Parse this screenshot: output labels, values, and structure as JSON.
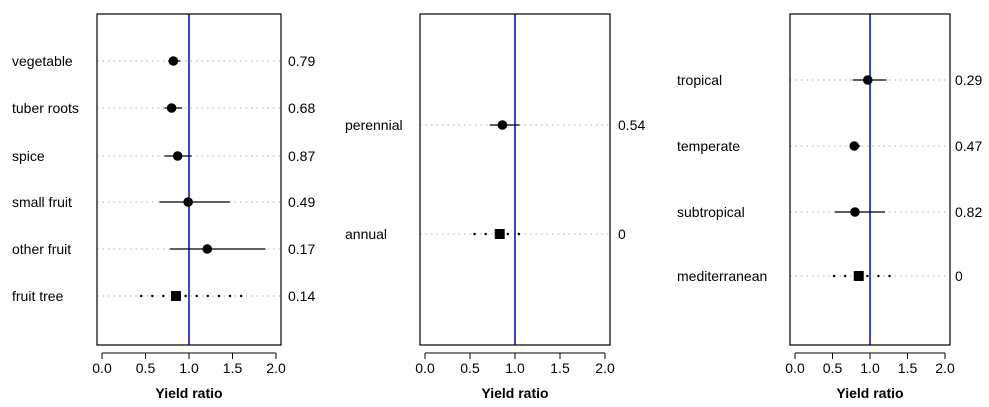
{
  "chart_data": [
    {
      "type": "forest",
      "xlabel": "Yield ratio",
      "xlim": [
        0,
        2
      ],
      "xticks": [
        "0.0",
        "0.5",
        "1.0",
        "1.5",
        "2.0"
      ],
      "reference_line": 1.0,
      "reference_color": "#1515c8",
      "rows": [
        {
          "label": "vegetable",
          "estimate": 0.82,
          "lower": 0.76,
          "upper": 0.9,
          "p": "0.79",
          "marker": "circle",
          "ci_style": "solid"
        },
        {
          "label": "tuber roots",
          "estimate": 0.8,
          "lower": 0.72,
          "upper": 0.92,
          "p": "0.68",
          "marker": "circle",
          "ci_style": "solid"
        },
        {
          "label": "spice",
          "estimate": 0.87,
          "lower": 0.72,
          "upper": 1.03,
          "p": "0.87",
          "marker": "circle",
          "ci_style": "solid"
        },
        {
          "label": "small fruit",
          "estimate": 0.99,
          "lower": 0.66,
          "upper": 1.47,
          "p": "0.49",
          "marker": "circle",
          "ci_style": "solid"
        },
        {
          "label": "other fruit",
          "estimate": 1.21,
          "lower": 0.78,
          "upper": 1.88,
          "p": "0.17",
          "marker": "circle",
          "ci_style": "solid"
        },
        {
          "label": "fruit tree",
          "estimate": 0.85,
          "lower": 0.45,
          "upper": 1.6,
          "p": "0.14",
          "marker": "square",
          "ci_style": "dotted"
        }
      ]
    },
    {
      "type": "forest",
      "xlabel": "Yield ratio",
      "xlim": [
        0,
        2
      ],
      "xticks": [
        "0.0",
        "0.5",
        "1.0",
        "1.5",
        "2.0"
      ],
      "reference_line": 1.0,
      "reference_color": "#1515c8",
      "rows": [
        {
          "label": "perennial",
          "estimate": 0.86,
          "lower": 0.72,
          "upper": 1.05,
          "p": "0.54",
          "marker": "circle",
          "ci_style": "solid"
        },
        {
          "label": "annual",
          "estimate": 0.83,
          "lower": 0.55,
          "upper": 1.15,
          "p": "0",
          "marker": "square",
          "ci_style": "dotted"
        }
      ]
    },
    {
      "type": "forest",
      "xlabel": "Yield ratio",
      "xlim": [
        0,
        2
      ],
      "xticks": [
        "0.0",
        "0.5",
        "1.0",
        "1.5",
        "2.0"
      ],
      "reference_line": 1.0,
      "reference_color": "#1515c8",
      "rows": [
        {
          "label": "tropical",
          "estimate": 0.97,
          "lower": 0.77,
          "upper": 1.22,
          "p": "0.29",
          "marker": "circle",
          "ci_style": "solid"
        },
        {
          "label": "temperate",
          "estimate": 0.79,
          "lower": 0.73,
          "upper": 0.87,
          "p": "0.47",
          "marker": "circle",
          "ci_style": "solid"
        },
        {
          "label": "subtropical",
          "estimate": 0.8,
          "lower": 0.53,
          "upper": 1.2,
          "p": "0.82",
          "marker": "circle",
          "ci_style": "solid"
        },
        {
          "label": "mediterranean",
          "estimate": 0.85,
          "lower": 0.52,
          "upper": 1.3,
          "p": "0",
          "marker": "square",
          "ci_style": "dotted"
        }
      ]
    }
  ]
}
